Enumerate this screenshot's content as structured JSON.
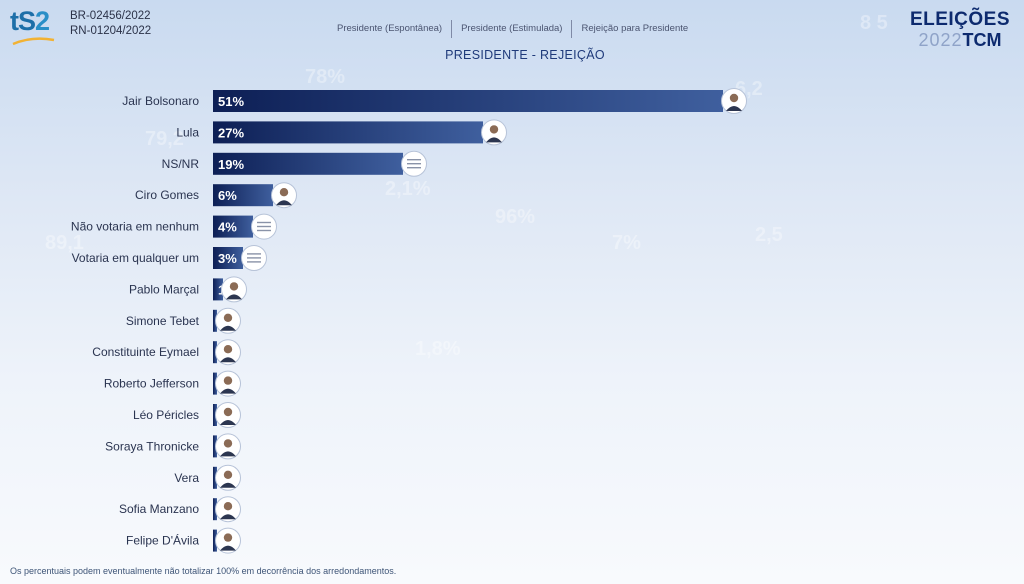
{
  "header": {
    "logo_text_1": "tS",
    "logo_text_2": "2",
    "registration_lines": [
      "BR-02456/2022",
      "RN-01204/2022"
    ],
    "tabs": [
      {
        "label": "Presidente (Espontânea)"
      },
      {
        "label": "Presidente (Estimulada)"
      },
      {
        "label": "Rejeição para Presidente"
      }
    ],
    "brand": {
      "top": "ELEIÇÕES",
      "year": "2022",
      "name": "TCM"
    }
  },
  "footnote": "Os percentuais podem eventualmente não totalizar 100% em decorrência dos arredondamentos.",
  "colors": {
    "bar_dark": "#0d1f55",
    "bar_light": "#3f5f9e",
    "label": "#2a3450",
    "value_text": "#ffffff"
  },
  "chart_data": {
    "type": "bar",
    "orientation": "horizontal",
    "title": "PRESIDENTE - REJEIÇÃO",
    "categories": [
      "Jair Bolsonaro",
      "Lula",
      "NS/NR",
      "Ciro Gomes",
      "Não votaria em nenhum",
      "Votaria em qualquer um",
      "Pablo Marçal",
      "Simone Tebet",
      "Constituinte Eymael",
      "Roberto Jefferson",
      "Léo Péricles",
      "Soraya Thronicke",
      "Vera",
      "Sofia Manzano",
      "Felipe D'Ávila"
    ],
    "values": [
      51,
      27,
      19,
      6,
      4,
      3,
      1,
      0,
      0,
      0,
      0,
      0,
      0,
      0,
      0
    ],
    "value_labels": [
      "51%",
      "27%",
      "19%",
      "6%",
      "4%",
      "3%",
      "1",
      "",
      "",
      "",
      "",
      "",
      "",
      "",
      ""
    ],
    "marker_icons": [
      "candidate-photo-icon",
      "candidate-photo-icon",
      "ns-nr-badge-icon",
      "candidate-photo-icon",
      "nenhum-badge-icon",
      "qualquer-badge-icon",
      "candidate-photo-icon",
      "candidate-photo-icon",
      "candidate-photo-icon",
      "candidate-photo-icon",
      "candidate-photo-icon",
      "candidate-photo-icon",
      "candidate-photo-icon",
      "candidate-photo-icon",
      "candidate-photo-icon"
    ],
    "xlim": [
      0,
      51
    ],
    "grid": false,
    "legend": "none"
  }
}
